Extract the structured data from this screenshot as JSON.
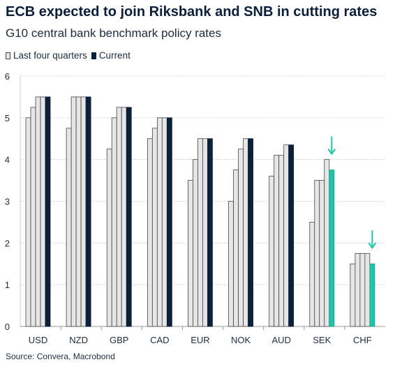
{
  "title": "ECB expected to join Riksbank and SNB in cutting rates",
  "subtitle": "G10 central bank benchmark policy rates",
  "legend": {
    "past_label": "Last four quarters",
    "current_label": "Current"
  },
  "source": "Source: Convera, Macrobond",
  "colors": {
    "past_fill": "#e6e6e6",
    "past_stroke": "#444444",
    "current": "#0c1f3b",
    "highlight": "#21c4a6",
    "grid": "#d0d0d0"
  },
  "chart_data": {
    "type": "bar",
    "title": "ECB expected to join Riksbank and SNB in cutting rates",
    "subtitle": "G10 central bank benchmark policy rates",
    "categories": [
      "USD",
      "NZD",
      "GBP",
      "CAD",
      "EUR",
      "NOK",
      "AUD",
      "SEK",
      "CHF"
    ],
    "series": [
      {
        "name": "Last four quarters",
        "kind": "past",
        "values": [
          [
            5.0,
            5.25,
            5.5,
            5.5
          ],
          [
            4.75,
            5.5,
            5.5,
            5.5
          ],
          [
            4.25,
            5.0,
            5.25,
            5.25
          ],
          [
            4.5,
            4.75,
            5.0,
            5.0
          ],
          [
            3.5,
            4.0,
            4.5,
            4.5
          ],
          [
            3.0,
            3.75,
            4.25,
            4.5
          ],
          [
            3.6,
            4.1,
            4.1,
            4.35
          ],
          [
            2.5,
            3.5,
            3.5,
            4.0
          ],
          [
            1.5,
            1.75,
            1.75,
            1.75
          ]
        ]
      },
      {
        "name": "Current",
        "kind": "current",
        "values": [
          5.5,
          5.5,
          5.25,
          5.0,
          4.5,
          4.5,
          4.35,
          3.75,
          1.5
        ]
      }
    ],
    "highlighted": [
      "SEK",
      "CHF"
    ],
    "arrows": [
      "SEK",
      "CHF"
    ],
    "ylim": [
      0,
      6
    ],
    "yticks": [
      0,
      1,
      2,
      3,
      4,
      5,
      6
    ],
    "grid": true,
    "legend_position": "top-left",
    "xlabel": "",
    "ylabel": ""
  }
}
